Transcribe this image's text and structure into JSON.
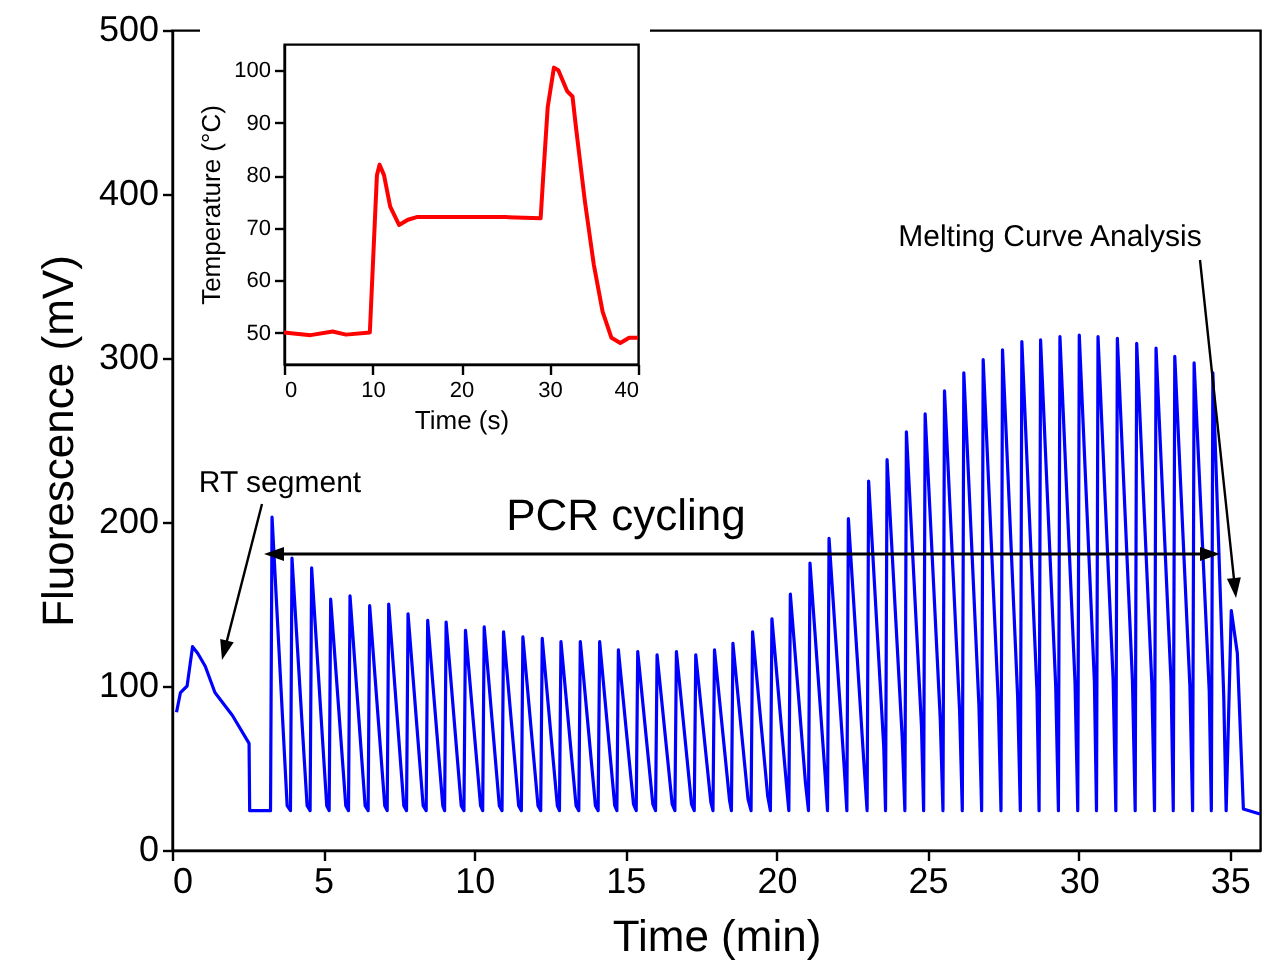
{
  "chart_data": [
    {
      "type": "line",
      "xlabel": "Time (min)",
      "ylabel": "Fluorescence (mV)",
      "xlim": [
        0,
        36
      ],
      "ylim": [
        0,
        500
      ],
      "xticks": [
        0,
        5,
        10,
        15,
        20,
        25,
        30,
        35
      ],
      "yticks": [
        0,
        100,
        200,
        300,
        400,
        500
      ],
      "grid": false,
      "annotations": [
        "RT segment",
        "PCR cycling",
        "Melting Curve Analysis"
      ],
      "series": [
        {
          "color": "#0000ff",
          "x": [
            0.15,
            0.28,
            0.5,
            0.68,
            0.85,
            1.1,
            1.42,
            2.0,
            2.55,
            2.57,
            3.0,
            3.26,
            3.31,
            3.81,
            3.92,
            3.97,
            4.47,
            4.57,
            4.62,
            5.12,
            5.2,
            5.25,
            5.75,
            5.84,
            5.89,
            6.39,
            6.49,
            6.54,
            7.04,
            7.12,
            7.17,
            7.67,
            7.76,
            7.81,
            8.31,
            8.41,
            8.46,
            8.96,
            9.02,
            9.07,
            9.57,
            9.66,
            9.71,
            10.21,
            10.28,
            10.33,
            10.83,
            10.92,
            10.97,
            11.47,
            11.56,
            11.61,
            12.11,
            12.2,
            12.25,
            12.75,
            12.82,
            12.87,
            13.37,
            13.46,
            13.51,
            14.01,
            14.1,
            14.15,
            14.65,
            14.72,
            14.77,
            15.27,
            15.36,
            15.41,
            15.91,
            16.0,
            16.05,
            16.55,
            16.64,
            16.69,
            17.19,
            17.28,
            17.33,
            17.83,
            17.9,
            17.95,
            18.45,
            18.51,
            18.56,
            19.06,
            19.16,
            19.21,
            19.71,
            19.8,
            19.85,
            20.35,
            20.41,
            20.46,
            20.96,
            21.06,
            21.11,
            21.61,
            21.69,
            21.74,
            22.24,
            22.33,
            22.38,
            22.88,
            23.0,
            23.05,
            23.55,
            23.61,
            23.66,
            24.16,
            24.25,
            24.3,
            24.8,
            24.87,
            24.92,
            25.42,
            25.51,
            25.56,
            26.06,
            26.15,
            26.2,
            26.7,
            26.79,
            26.84,
            27.34,
            27.43,
            27.48,
            27.98,
            28.07,
            28.12,
            28.62,
            28.69,
            28.74,
            29.24,
            29.33,
            29.38,
            29.88,
            29.97,
            30.02,
            30.52,
            30.59,
            30.64,
            31.14,
            31.23,
            31.28,
            31.78,
            31.87,
            31.92,
            32.42,
            32.51,
            32.56,
            33.06,
            33.13,
            33.18,
            33.68,
            33.77,
            33.82,
            34.32,
            34.39,
            34.44,
            34.8,
            34.88,
            35.05,
            35.25,
            35.45,
            36.0
          ],
          "values": [
            84,
            96,
            100,
            124,
            120,
            112,
            96,
            82,
            65,
            24,
            24,
            24,
            203,
            27,
            24,
            178,
            27,
            24,
            172,
            27,
            24,
            153,
            27,
            24,
            155,
            27,
            24,
            149,
            27,
            24,
            150,
            27,
            24,
            144,
            27,
            24,
            140,
            27,
            24,
            139,
            27,
            24,
            134,
            27,
            24,
            136,
            27,
            24,
            133,
            27,
            24,
            130,
            27,
            24,
            129,
            27,
            24,
            127,
            27,
            24,
            127,
            27,
            24,
            127,
            27,
            24,
            122,
            28,
            24,
            121,
            28,
            24,
            119,
            28,
            24,
            121,
            28,
            24,
            119,
            29,
            24,
            122,
            30,
            24,
            126,
            31,
            24,
            133,
            33,
            24,
            141,
            36,
            24,
            156,
            41,
            24,
            175,
            46,
            24,
            190,
            51,
            24,
            202,
            57,
            24,
            225,
            63,
            24,
            238,
            69,
            24,
            255,
            75,
            24,
            266,
            80,
            24,
            280,
            85,
            24,
            291,
            88,
            24,
            299,
            91,
            24,
            305,
            94,
            24,
            310,
            97,
            24,
            311,
            100,
            24,
            313,
            102,
            24,
            314,
            103,
            24,
            313,
            104,
            24,
            312,
            103,
            24,
            309,
            102,
            24,
            306,
            101,
            24,
            301,
            100,
            24,
            297,
            97,
            24,
            291,
            94,
            24,
            146,
            120,
            25,
            22
          ]
        }
      ]
    },
    {
      "type": "line",
      "xlabel": "Time (s)",
      "ylabel": "Temperature (°C)",
      "xlim": [
        0,
        40
      ],
      "ylim": [
        44,
        105
      ],
      "xticks": [
        0,
        10,
        20,
        30,
        40
      ],
      "yticks": [
        50,
        60,
        70,
        80,
        90,
        100
      ],
      "grid": false,
      "series": [
        {
          "color": "#ff0000",
          "x": [
            0,
            3,
            5.5,
            7,
            9.7,
            10.1,
            10.5,
            10.8,
            11.3,
            12,
            13,
            14,
            15,
            20,
            25,
            29,
            29.3,
            29.8,
            30.5,
            31,
            31.5,
            32,
            32.6,
            33,
            34,
            35,
            36,
            37,
            38,
            39,
            40
          ],
          "values": [
            50,
            49.5,
            50.2,
            49.6,
            50,
            65,
            80,
            82,
            80,
            74,
            70.5,
            71.5,
            72,
            72,
            72,
            71.8,
            80,
            93,
            100.5,
            100,
            98,
            96,
            95,
            89,
            75,
            63,
            54,
            49,
            48,
            49,
            49
          ]
        }
      ]
    }
  ]
}
